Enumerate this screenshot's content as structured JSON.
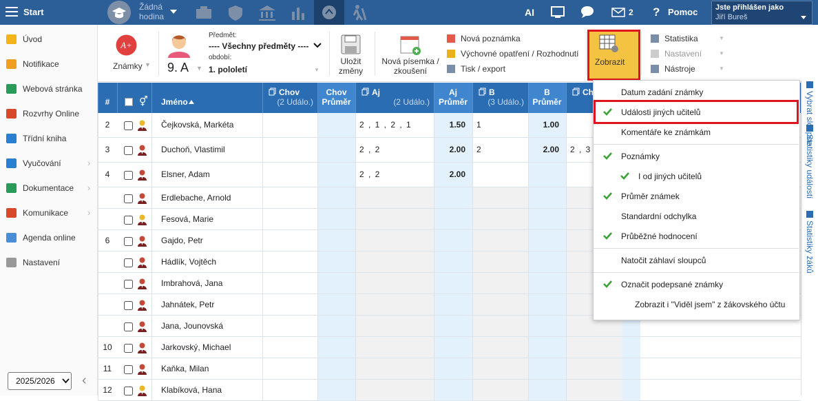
{
  "topbar": {
    "start": "Start",
    "lesson": "Žádná hodina",
    "ai": "AI",
    "messages": "2",
    "help": "Pomoc",
    "user_label": "Jste přihlášen jako",
    "user_name": "Jiří Bureš"
  },
  "sidebar": {
    "items": [
      {
        "label": "Úvod"
      },
      {
        "label": "Notifikace"
      },
      {
        "label": "Webová stránka"
      },
      {
        "label": "Rozvrhy Online"
      },
      {
        "label": "Třídní kniha"
      },
      {
        "label": "Vyučování",
        "submenu": true
      },
      {
        "label": "Dokumentace",
        "submenu": true
      },
      {
        "label": "Komunikace",
        "submenu": true
      },
      {
        "label": "Agenda online"
      },
      {
        "label": "Nastavení"
      }
    ],
    "year": "2025/2026"
  },
  "toolbar": {
    "grades": "Známky",
    "class": "9. A",
    "subject_label": "Předmět:",
    "subject": "---- Všechny předměty ----",
    "period_label": "období:",
    "period": "1. pololetí",
    "save": "Uložit změny",
    "new_exam": "Nová písemka / zkoušení",
    "new_note": "Nová poznámka",
    "measure": "Výchovné opatření / Rozhodnutí",
    "print": "Tisk / export",
    "show": "Zobrazit",
    "stats": "Statistika",
    "settings": "Nastavení",
    "tools": "Nástroje"
  },
  "table": {
    "columns": [
      {
        "label": "#"
      },
      {
        "label": "Jméno"
      },
      {
        "label": "Chov",
        "sub": "(2 Událo.)"
      },
      {
        "label": "Chov",
        "sub": "Průměr"
      },
      {
        "label": "Aj",
        "sub": "(2 Událo.)"
      },
      {
        "label": "Aj",
        "sub": "Průměr"
      },
      {
        "label": "B",
        "sub": "(3 Událo.)"
      },
      {
        "label": "B",
        "sub": "Průměr"
      },
      {
        "label": "Ch"
      }
    ],
    "rows": [
      [
        "2",
        "Čejkovská, Markéta",
        null,
        null,
        "2 , 1 , 2 , 1",
        "1.50",
        "1",
        "1.00",
        null
      ],
      [
        "3",
        "Duchoň, Vlastimil",
        null,
        null,
        "2 , 2",
        "2.00",
        "2",
        "2.00",
        "2 , 3"
      ],
      [
        "4",
        "Elsner, Adam",
        null,
        null,
        "2 , 2",
        "2.00",
        null,
        null,
        null
      ],
      [
        null,
        "Erdlebache, Arnold",
        null,
        null,
        null,
        null,
        null,
        null,
        null
      ],
      [
        null,
        "Fesová, Marie",
        null,
        null,
        null,
        null,
        null,
        null,
        null
      ],
      [
        "6",
        "Gajdo, Petr",
        null,
        null,
        null,
        null,
        null,
        null,
        null
      ],
      [
        null,
        "Hádlík, Vojtěch",
        null,
        null,
        null,
        null,
        null,
        null,
        null
      ],
      [
        null,
        "Imbrahová, Jana",
        null,
        null,
        null,
        null,
        null,
        null,
        null
      ],
      [
        null,
        "Jahnátek, Petr",
        null,
        null,
        null,
        null,
        null,
        null,
        null
      ],
      [
        null,
        "Jana, Jounovská",
        null,
        null,
        null,
        null,
        null,
        null,
        null
      ],
      [
        "10",
        "Jarkovský, Michael",
        null,
        null,
        null,
        null,
        null,
        null,
        null
      ],
      [
        "11",
        "Kaňka, Milan",
        null,
        null,
        null,
        null,
        null,
        null,
        null
      ],
      [
        "12",
        "Klabíková, Hana",
        null,
        null,
        null,
        null,
        null,
        null,
        null
      ]
    ]
  },
  "menu": {
    "groups": [
      [
        {
          "label": "Datum zadání známky",
          "checked": false
        },
        {
          "label": "Události jiných učitelů",
          "checked": true,
          "highlight": true
        },
        {
          "label": "Komentáře ke známkám",
          "checked": false
        }
      ],
      [
        {
          "label": "Poznámky",
          "checked": true
        },
        {
          "label": "I od jiných učitelů",
          "checked": true,
          "indent": true
        },
        {
          "label": "Průměr známek",
          "checked": true
        },
        {
          "label": "Standardní odchylka",
          "checked": false
        },
        {
          "label": "Průběžné hodnocení",
          "checked": true
        }
      ],
      [
        {
          "label": "Natočit záhlaví sloupců",
          "checked": false
        }
      ],
      [
        {
          "label": "Označit podepsané známky",
          "checked": true
        },
        {
          "label": "Zobrazit i \"Viděl jsem\" z žákovského účtu",
          "checked": false,
          "indent": true
        }
      ]
    ]
  },
  "side_panel": {
    "items": [
      "Vybrat sloupce",
      "Statistiky událostí",
      "Statistiky žáků"
    ]
  }
}
